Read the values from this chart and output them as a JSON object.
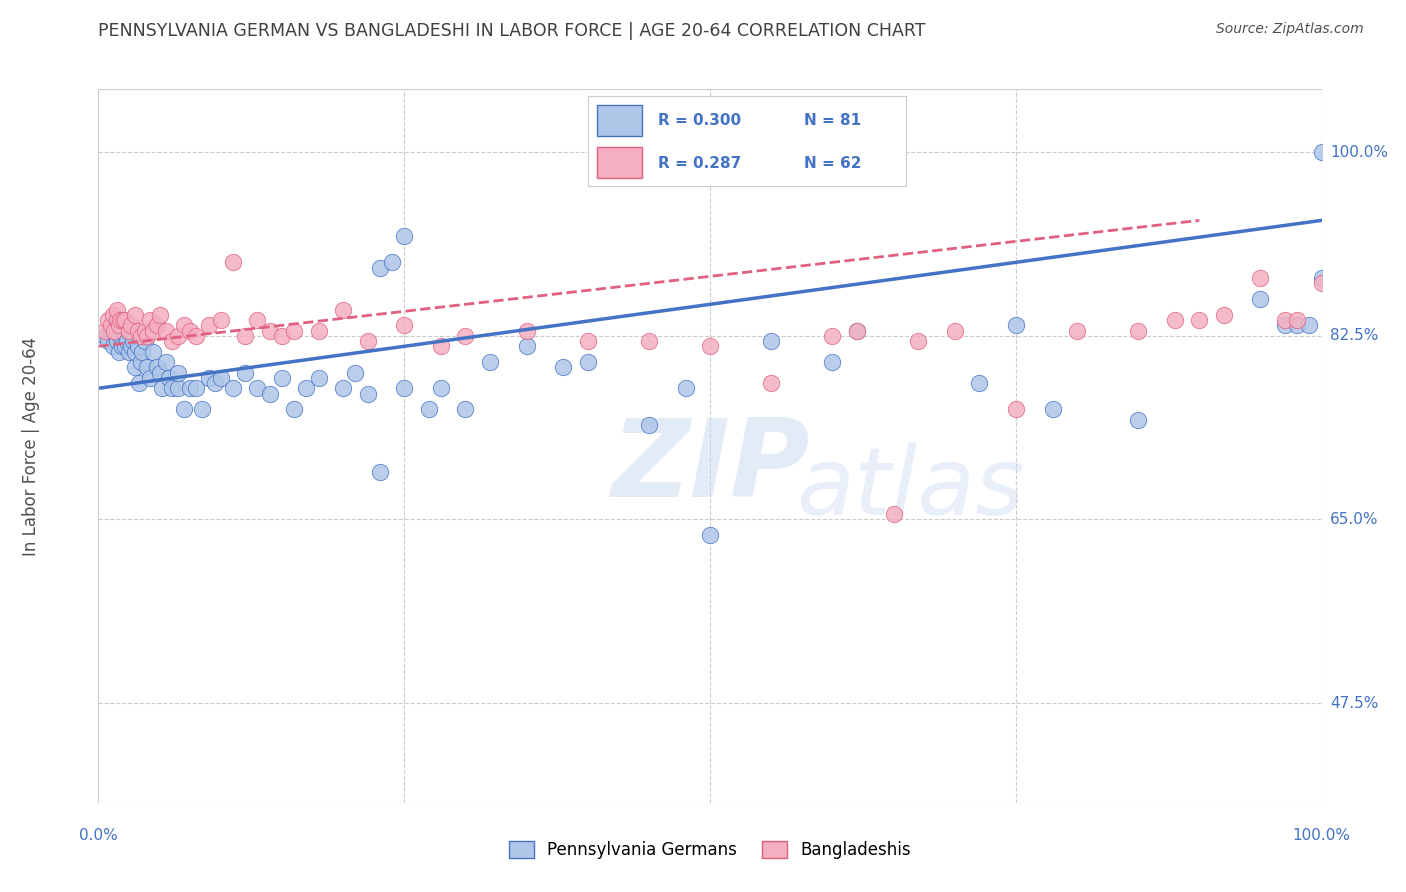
{
  "title": "PENNSYLVANIA GERMAN VS BANGLADESHI IN LABOR FORCE | AGE 20-64 CORRELATION CHART",
  "source": "Source: ZipAtlas.com",
  "ylabel": "In Labor Force | Age 20-64",
  "legend_blue_label": "Pennsylvania Germans",
  "legend_pink_label": "Bangladeshis",
  "legend_R_blue": "R = 0.300",
  "legend_N_blue": "N = 81",
  "legend_R_pink": "R = 0.287",
  "legend_N_pink": "N = 62",
  "blue_color": "#aec6e8",
  "pink_color": "#f4afc0",
  "line_blue": "#4472c4",
  "line_pink": "#e06080",
  "watermark_zip": "ZIP",
  "watermark_atlas": "atlas",
  "bg_color": "#ffffff",
  "grid_color": "#cccccc",
  "title_color": "#404040",
  "axis_color": "#4472c4",
  "xlim": [
    0.0,
    1.0
  ],
  "ylim": [
    0.38,
    1.06
  ],
  "ytick_vals": [
    1.0,
    0.825,
    0.65,
    0.475
  ],
  "ytick_labels": [
    "100.0%",
    "82.5%",
    "65.0%",
    "47.5%"
  ],
  "xtick_vals": [
    0.0,
    1.0
  ],
  "xtick_labels": [
    "0.0%",
    "100.0%"
  ],
  "blue_line_x0": 0.0,
  "blue_line_y0": 0.775,
  "blue_line_x1": 1.0,
  "blue_line_y1": 0.935,
  "pink_line_x0": 0.0,
  "pink_line_y0": 0.815,
  "pink_line_x1": 0.9,
  "pink_line_y1": 0.935,
  "blue_x": [
    0.005,
    0.008,
    0.01,
    0.012,
    0.013,
    0.015,
    0.015,
    0.017,
    0.018,
    0.019,
    0.02,
    0.022,
    0.023,
    0.025,
    0.025,
    0.027,
    0.028,
    0.03,
    0.03,
    0.032,
    0.033,
    0.035,
    0.036,
    0.038,
    0.04,
    0.042,
    0.045,
    0.048,
    0.05,
    0.052,
    0.055,
    0.058,
    0.06,
    0.065,
    0.065,
    0.07,
    0.075,
    0.08,
    0.085,
    0.09,
    0.095,
    0.1,
    0.11,
    0.12,
    0.13,
    0.14,
    0.15,
    0.16,
    0.17,
    0.18,
    0.2,
    0.21,
    0.22,
    0.23,
    0.25,
    0.27,
    0.28,
    0.3,
    0.32,
    0.35,
    0.38,
    0.4,
    0.45,
    0.48,
    0.5,
    0.55,
    0.6,
    0.62,
    0.72,
    0.75,
    0.78,
    0.85,
    0.23,
    0.24,
    0.25,
    0.95,
    0.97,
    0.98,
    0.99,
    1.0,
    1.0
  ],
  "blue_y": [
    0.825,
    0.82,
    0.83,
    0.815,
    0.83,
    0.82,
    0.835,
    0.81,
    0.825,
    0.815,
    0.83,
    0.815,
    0.82,
    0.83,
    0.81,
    0.815,
    0.82,
    0.795,
    0.81,
    0.815,
    0.78,
    0.8,
    0.81,
    0.82,
    0.795,
    0.785,
    0.81,
    0.795,
    0.79,
    0.775,
    0.8,
    0.785,
    0.775,
    0.775,
    0.79,
    0.755,
    0.775,
    0.775,
    0.755,
    0.785,
    0.78,
    0.785,
    0.775,
    0.79,
    0.775,
    0.77,
    0.785,
    0.755,
    0.775,
    0.785,
    0.775,
    0.79,
    0.77,
    0.695,
    0.775,
    0.755,
    0.775,
    0.755,
    0.8,
    0.815,
    0.795,
    0.8,
    0.74,
    0.775,
    0.635,
    0.82,
    0.8,
    0.83,
    0.78,
    0.835,
    0.755,
    0.745,
    0.89,
    0.895,
    0.92,
    0.86,
    0.835,
    0.835,
    0.835,
    0.88,
    1.0
  ],
  "pink_x": [
    0.005,
    0.008,
    0.01,
    0.012,
    0.013,
    0.015,
    0.015,
    0.017,
    0.018,
    0.02,
    0.022,
    0.025,
    0.027,
    0.03,
    0.032,
    0.035,
    0.038,
    0.04,
    0.042,
    0.045,
    0.048,
    0.05,
    0.055,
    0.06,
    0.065,
    0.07,
    0.075,
    0.08,
    0.09,
    0.1,
    0.11,
    0.12,
    0.13,
    0.14,
    0.15,
    0.16,
    0.18,
    0.2,
    0.22,
    0.25,
    0.28,
    0.3,
    0.35,
    0.4,
    0.45,
    0.5,
    0.55,
    0.6,
    0.65,
    0.7,
    0.75,
    0.8,
    0.85,
    0.88,
    0.9,
    0.92,
    0.95,
    0.97,
    0.98,
    1.0,
    0.62,
    0.67
  ],
  "pink_y": [
    0.83,
    0.84,
    0.835,
    0.845,
    0.83,
    0.84,
    0.85,
    0.835,
    0.84,
    0.84,
    0.84,
    0.83,
    0.835,
    0.845,
    0.83,
    0.825,
    0.83,
    0.825,
    0.84,
    0.83,
    0.835,
    0.845,
    0.83,
    0.82,
    0.825,
    0.835,
    0.83,
    0.825,
    0.835,
    0.84,
    0.895,
    0.825,
    0.84,
    0.83,
    0.825,
    0.83,
    0.83,
    0.85,
    0.82,
    0.835,
    0.815,
    0.825,
    0.83,
    0.82,
    0.82,
    0.815,
    0.78,
    0.825,
    0.655,
    0.83,
    0.755,
    0.83,
    0.83,
    0.84,
    0.84,
    0.845,
    0.88,
    0.84,
    0.84,
    0.875,
    0.83,
    0.82
  ]
}
